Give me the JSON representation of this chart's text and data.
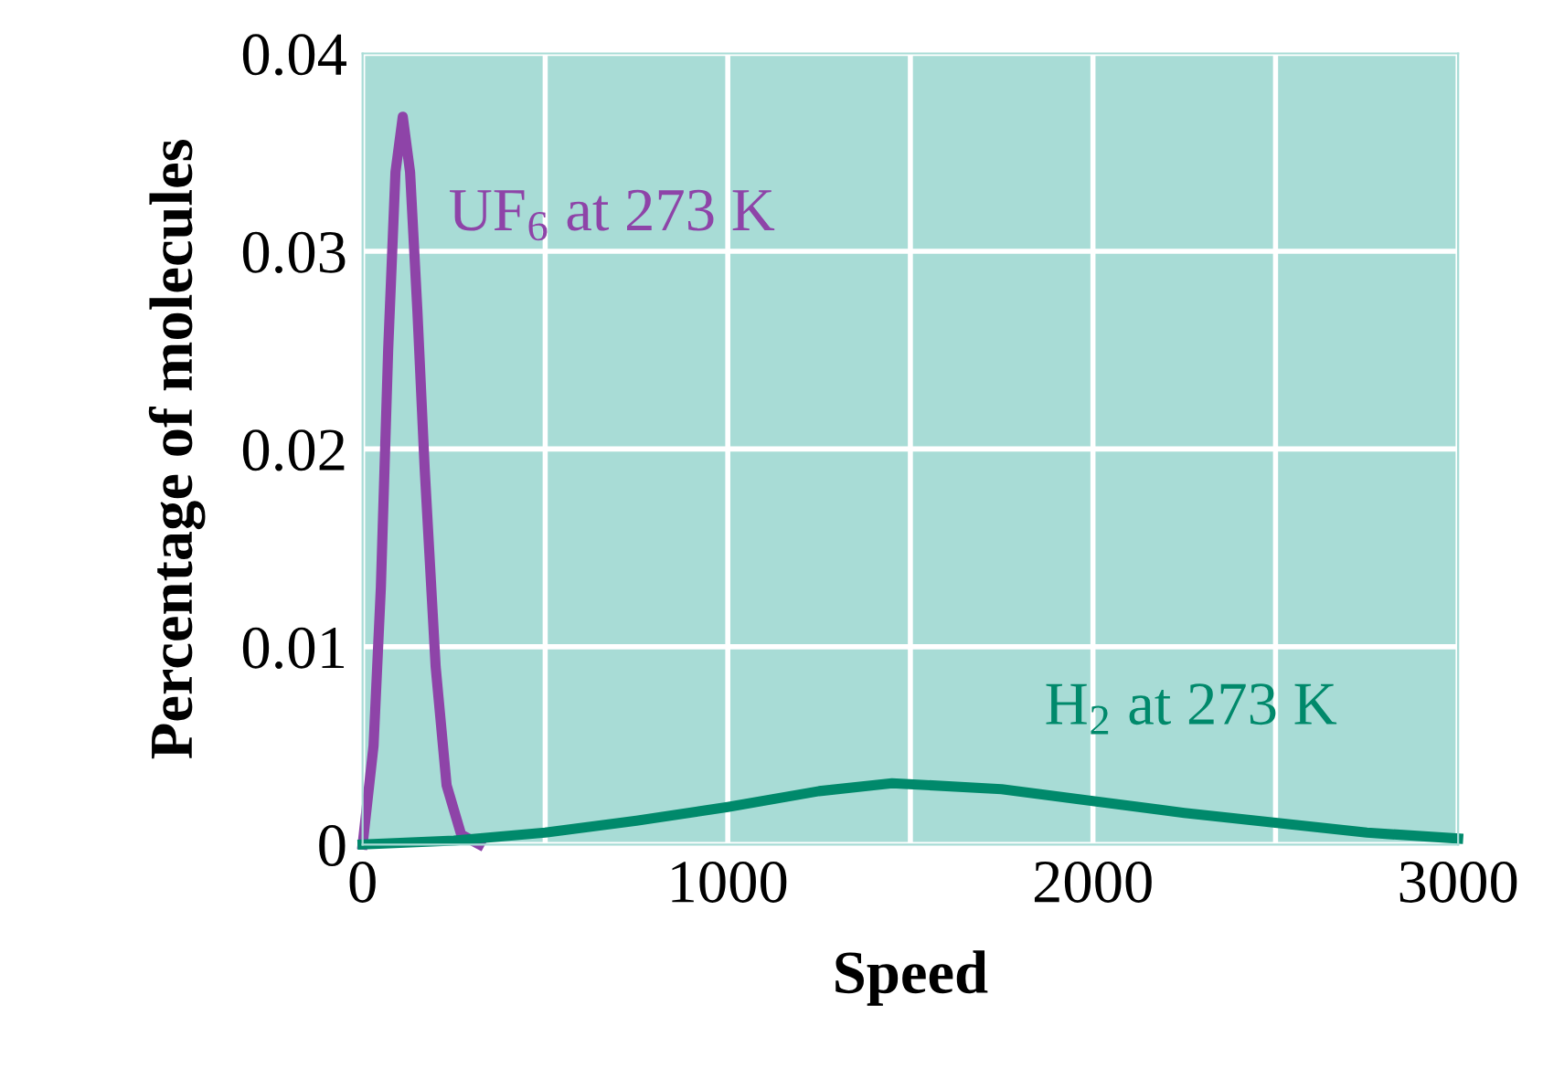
{
  "chart_data": {
    "type": "line",
    "xlabel": "Speed",
    "ylabel": "Percentage of molecules",
    "xlim": [
      0,
      3000
    ],
    "ylim": [
      0,
      0.04
    ],
    "xticks": [
      0,
      {
        "value": 500,
        "label": null
      },
      1000,
      {
        "value": 1500,
        "label": null
      },
      2000,
      {
        "value": 2500,
        "label": null
      },
      3000
    ],
    "yticks": [
      0,
      0.01,
      0.02,
      0.03,
      0.04
    ],
    "grid": true,
    "legend": false,
    "marker": "none",
    "line_style": "solid",
    "series": [
      {
        "name": "UF$_{6}$ at 273 K",
        "color": "#8e44a8",
        "x": [
          0,
          30,
          50,
          70,
          90,
          110,
          130,
          150,
          170,
          200,
          230,
          270,
          320
        ],
        "values": [
          0,
          0.005,
          0.013,
          0.025,
          0.034,
          0.0368,
          0.034,
          0.027,
          0.019,
          0.009,
          0.003,
          0.0005,
          0
        ]
      },
      {
        "name": "H$_{2}$ at 273 K",
        "color": "#00896b",
        "x": [
          0,
          250,
          500,
          750,
          1000,
          1250,
          1450,
          1750,
          2000,
          2250,
          2500,
          2750,
          3000
        ],
        "values": [
          0,
          0.0002,
          0.0006,
          0.0012,
          0.0019,
          0.0027,
          0.0031,
          0.0028,
          0.0022,
          0.0016,
          0.0011,
          0.0006,
          0.0003
        ]
      }
    ]
  }
}
